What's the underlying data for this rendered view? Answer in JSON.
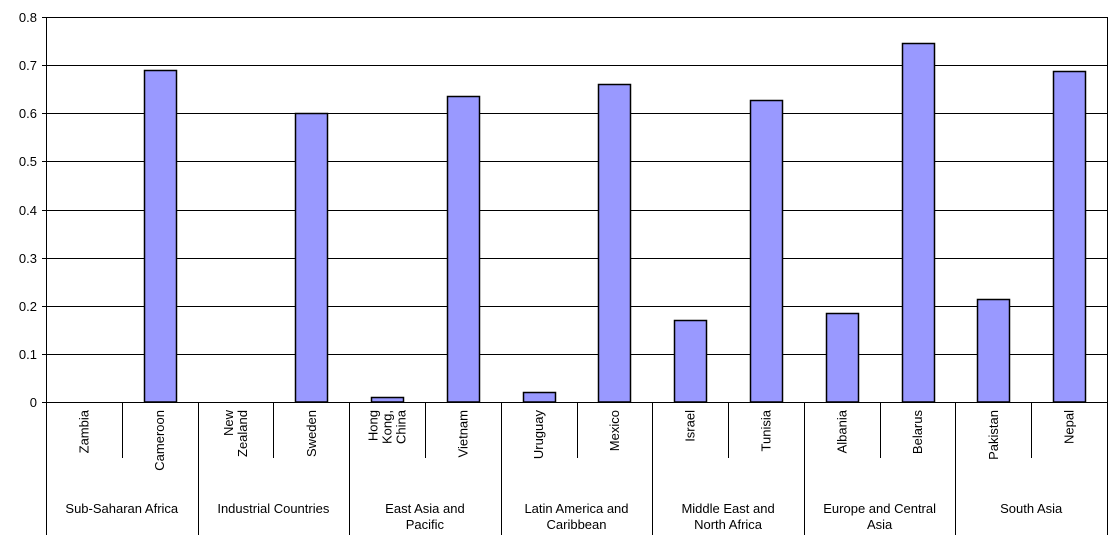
{
  "chart_data": {
    "type": "bar",
    "categories": [
      "Zambia",
      "Cameroon",
      "New Zealand",
      "Sweden",
      "Hong Kong, China",
      "Vietnam",
      "Uruguay",
      "Mexico",
      "Israel",
      "Tunisia",
      "Albania",
      "Belarus",
      "Pakistan",
      "Nepal"
    ],
    "category_label_lines": [
      [
        "Zambia"
      ],
      [
        "Cameroon"
      ],
      [
        "New",
        "Zealand"
      ],
      [
        "Sweden"
      ],
      [
        "Hong",
        "Kong,",
        "China"
      ],
      [
        "Vietnam"
      ],
      [
        "Uruguay"
      ],
      [
        "Mexico"
      ],
      [
        "Israel"
      ],
      [
        "Tunisia"
      ],
      [
        "Albania"
      ],
      [
        "Belarus"
      ],
      [
        "Pakistan"
      ],
      [
        "Nepal"
      ]
    ],
    "values": [
      0,
      0.69,
      0,
      0.6,
      0.01,
      0.635,
      0.02,
      0.66,
      0.17,
      0.627,
      0.185,
      0.745,
      0.215,
      0.688
    ],
    "groups": [
      {
        "label": "Sub-Saharan Africa",
        "lines": [
          "Sub-Saharan Africa"
        ],
        "count": 2
      },
      {
        "label": "Industrial Countries",
        "lines": [
          "Industrial Countries"
        ],
        "count": 2
      },
      {
        "label": "East Asia and Pacific",
        "lines": [
          "East Asia and",
          "Pacific"
        ],
        "count": 2
      },
      {
        "label": "Latin America and Caribbean",
        "lines": [
          "Latin America and",
          "Caribbean"
        ],
        "count": 2
      },
      {
        "label": "Middle East and North Africa",
        "lines": [
          "Middle East and",
          "North Africa"
        ],
        "count": 2
      },
      {
        "label": "Europe and Central Asia",
        "lines": [
          "Europe and Central",
          "Asia"
        ],
        "count": 2
      },
      {
        "label": "South Asia",
        "lines": [
          "South Asia"
        ],
        "count": 2
      }
    ],
    "yticks": [
      "0",
      "0.1",
      "0.2",
      "0.3",
      "0.4",
      "0.5",
      "0.6",
      "0.7",
      "0.8"
    ],
    "ylim": [
      0,
      0.8
    ],
    "grid": true,
    "title": "",
    "xlabel": "",
    "ylabel": "",
    "bar_color": "#9999ff",
    "bar_outline": "#000000"
  }
}
